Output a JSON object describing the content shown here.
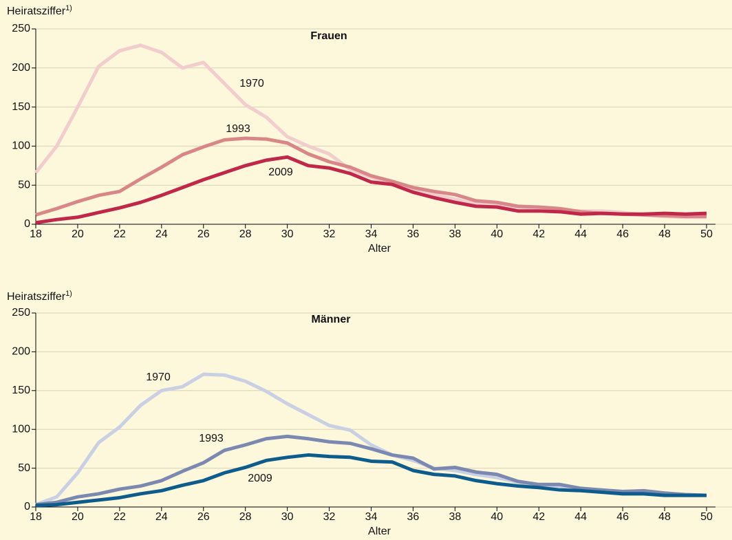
{
  "chart_data": [
    {
      "type": "line",
      "title": "Frauen",
      "y_label": "Heiratsziffer",
      "y_label_note": "1)",
      "x_label": "Alter",
      "x": [
        18,
        19,
        20,
        21,
        22,
        23,
        24,
        25,
        26,
        27,
        28,
        29,
        30,
        31,
        32,
        33,
        34,
        35,
        36,
        37,
        38,
        39,
        40,
        41,
        42,
        43,
        44,
        45,
        46,
        47,
        48,
        49,
        50
      ],
      "series": [
        {
          "name": "1970",
          "color": "#f1cdcd",
          "values": [
            66,
            100,
            150,
            202,
            222,
            229,
            220,
            200,
            207,
            180,
            153,
            137,
            112,
            100,
            90,
            70,
            60,
            52,
            44,
            38,
            32,
            26,
            24,
            22,
            20,
            18,
            17,
            17,
            15,
            12,
            10,
            9,
            9
          ]
        },
        {
          "name": "1993",
          "color": "#d98689",
          "values": [
            12,
            20,
            29,
            37,
            42,
            58,
            73,
            89,
            99,
            108,
            110,
            109,
            104,
            90,
            80,
            73,
            62,
            55,
            47,
            42,
            38,
            30,
            28,
            23,
            22,
            20,
            16,
            14,
            13,
            12,
            11,
            10,
            10
          ]
        },
        {
          "name": "2009",
          "color": "#c0284a",
          "values": [
            2,
            6,
            9,
            15,
            21,
            28,
            37,
            47,
            57,
            66,
            75,
            82,
            86,
            75,
            72,
            65,
            54,
            51,
            41,
            34,
            28,
            23,
            22,
            17,
            17,
            16,
            13,
            14,
            13,
            13,
            14,
            13,
            14
          ]
        }
      ],
      "xlim": [
        18,
        50
      ],
      "xticks": [
        18,
        20,
        22,
        24,
        26,
        28,
        30,
        32,
        34,
        36,
        38,
        40,
        42,
        44,
        46,
        48,
        50
      ],
      "ylim": [
        0,
        250
      ],
      "yticks": [
        0,
        50,
        100,
        150,
        200,
        250
      ],
      "grid": true
    },
    {
      "type": "line",
      "title": "Männer",
      "y_label": "Heiratsziffer",
      "y_label_note": "1)",
      "x_label": "Alter",
      "x": [
        18,
        19,
        20,
        21,
        22,
        23,
        24,
        25,
        26,
        27,
        28,
        29,
        30,
        31,
        32,
        33,
        34,
        35,
        36,
        37,
        38,
        39,
        40,
        41,
        42,
        43,
        44,
        45,
        46,
        47,
        48,
        49,
        50
      ],
      "series": [
        {
          "name": "1970",
          "color": "#c9d0e3",
          "values": [
            3,
            13,
            44,
            83,
            103,
            131,
            150,
            155,
            171,
            170,
            162,
            149,
            133,
            119,
            105,
            99,
            80,
            67,
            60,
            50,
            47,
            42,
            38,
            32,
            28,
            27,
            23,
            21,
            19,
            18,
            16,
            15,
            15
          ]
        },
        {
          "name": "1993",
          "color": "#7b88b0",
          "values": [
            3,
            6,
            13,
            17,
            23,
            27,
            34,
            46,
            57,
            73,
            80,
            88,
            91,
            88,
            84,
            82,
            75,
            67,
            63,
            49,
            51,
            45,
            42,
            33,
            29,
            29,
            24,
            22,
            20,
            21,
            18,
            16,
            15
          ]
        },
        {
          "name": "2009",
          "color": "#0e5c8c",
          "values": [
            2,
            3,
            6,
            9,
            12,
            17,
            21,
            28,
            34,
            44,
            51,
            60,
            64,
            67,
            65,
            64,
            59,
            58,
            47,
            42,
            40,
            34,
            30,
            27,
            25,
            22,
            21,
            19,
            17,
            17,
            15,
            15,
            15
          ]
        }
      ],
      "xlim": [
        18,
        50
      ],
      "xticks": [
        18,
        20,
        22,
        24,
        26,
        28,
        30,
        32,
        34,
        36,
        38,
        40,
        42,
        44,
        46,
        48,
        50
      ],
      "ylim": [
        0,
        250
      ],
      "yticks": [
        0,
        50,
        100,
        150,
        200,
        250
      ],
      "grid": true
    }
  ]
}
